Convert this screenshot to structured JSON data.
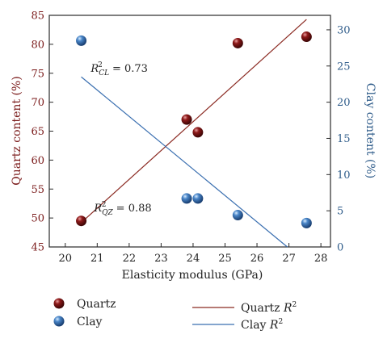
{
  "chart_data": {
    "type": "scatter",
    "xlabel": "Elasticity modulus (GPa)",
    "ylabel": "Quartz content (%)",
    "y2label": "Clay content (%)",
    "xlim": [
      19.5,
      28.3
    ],
    "ylim": [
      45,
      85
    ],
    "y2lim": [
      0,
      32
    ],
    "xticks": [
      20,
      21,
      22,
      23,
      24,
      25,
      26,
      27,
      28
    ],
    "yticks": [
      45,
      50,
      55,
      60,
      65,
      70,
      75,
      80,
      85
    ],
    "y2ticks": [
      0,
      5,
      10,
      15,
      20,
      25,
      30
    ],
    "series": [
      {
        "name": "Quartz",
        "axis": "left",
        "color": "#7a1010",
        "points": [
          [
            20.5,
            49.5
          ],
          [
            23.8,
            67.0
          ],
          [
            24.15,
            64.8
          ],
          [
            25.4,
            80.2
          ],
          [
            27.55,
            81.3
          ]
        ],
        "fit": {
          "x": [
            20.5,
            27.55
          ],
          "y": [
            49.2,
            84.3
          ],
          "color": "#8b2a22"
        }
      },
      {
        "name": "Clay",
        "axis": "right",
        "color": "#3a73b5",
        "points": [
          [
            20.5,
            28.5
          ],
          [
            23.8,
            6.7
          ],
          [
            24.15,
            6.7
          ],
          [
            25.4,
            4.4
          ],
          [
            27.55,
            3.3
          ]
        ],
        "fit": {
          "x": [
            20.5,
            26.95
          ],
          "y": [
            23.5,
            0.0
          ],
          "color": "#3a6fb0"
        }
      }
    ],
    "annotations": {
      "cl": {
        "R": "R",
        "exp": "2",
        "sub": "CL",
        "value": " = 0.73",
        "x": 20.8,
        "y": 24.2,
        "axis": "right"
      },
      "qz": {
        "R": "R",
        "exp": "2",
        "sub": "QZ",
        "value": " = 0.88",
        "x": 20.9,
        "y": 51.1,
        "axis": "left"
      }
    },
    "legend": {
      "quartz_marker": "Quartz",
      "clay_marker": "Clay",
      "quartz_line": "Quartz ",
      "clay_line": "Clay ",
      "r": "R",
      "exp": "2"
    }
  }
}
